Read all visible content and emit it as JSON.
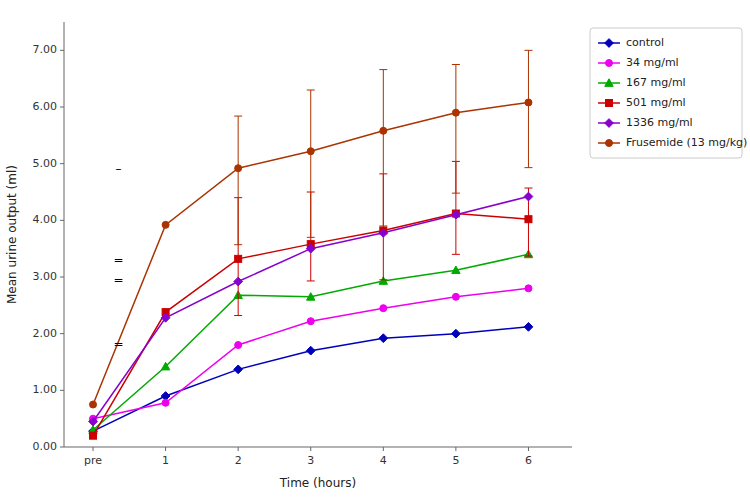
{
  "chart_data": {
    "type": "line",
    "xlabel": "Time (hours)",
    "ylabel": "Mean urine output (ml)",
    "categories": [
      "pre",
      "1",
      "2",
      "3",
      "4",
      "5",
      "6"
    ],
    "xlim": [
      -0.4,
      6.6
    ],
    "ylim": [
      0.0,
      7.5
    ],
    "yticks": [
      {
        "value": 0.0,
        "label": "0.00"
      },
      {
        "value": 1.0,
        "label": "1.00"
      },
      {
        "value": 2.0,
        "label": "2.00"
      },
      {
        "value": 3.0,
        "label": "3.00"
      },
      {
        "value": 4.0,
        "label": "4.00"
      },
      {
        "value": 5.0,
        "label": "5.00"
      },
      {
        "value": 6.0,
        "label": "6.00"
      },
      {
        "value": 7.0,
        "label": "7.00"
      }
    ],
    "grid": false,
    "legend": "right",
    "series": [
      {
        "name": "control",
        "color": "#0000bb",
        "marker": "diamond",
        "values": [
          0.28,
          0.9,
          1.37,
          1.7,
          1.92,
          2.0,
          2.12
        ],
        "yerr_low": [
          0.0,
          0.0,
          0.0,
          0.0,
          0.0,
          0.0,
          0.0
        ],
        "yerr_high": [
          0.0,
          0.0,
          0.0,
          0.0,
          0.0,
          0.0,
          0.0
        ]
      },
      {
        "name": "34 mg/ml",
        "color": "#ee00ee",
        "marker": "circle",
        "values": [
          0.5,
          0.78,
          1.8,
          2.22,
          2.45,
          2.65,
          2.8
        ],
        "yerr_low": [
          0.0,
          0.0,
          0.0,
          0.0,
          0.0,
          0.0,
          0.0
        ],
        "yerr_high": [
          0.0,
          0.0,
          0.0,
          0.0,
          0.0,
          0.0,
          0.0
        ]
      },
      {
        "name": "167 mg/ml",
        "color": "#00aa00",
        "marker": "triangle",
        "values": [
          0.3,
          1.42,
          2.68,
          2.65,
          2.93,
          3.12,
          3.4
        ],
        "yerr_low": [
          0.0,
          0.0,
          0.0,
          0.0,
          0.0,
          0.0,
          0.0
        ],
        "yerr_high": [
          0.0,
          0.0,
          0.0,
          0.0,
          0.0,
          0.0,
          0.0
        ]
      },
      {
        "name": "501 mg/ml",
        "color": "#cc0000",
        "marker": "square",
        "values": [
          0.2,
          2.38,
          3.32,
          3.58,
          3.82,
          4.12,
          4.02
        ],
        "yerr_low": [
          0.0,
          0.0,
          1.0,
          0.65,
          0.87,
          0.72,
          0.65
        ],
        "yerr_high": [
          0.0,
          0.0,
          1.08,
          0.92,
          1.0,
          0.92,
          0.55
        ]
      },
      {
        "name": "1336 mg/ml",
        "color": "#8800cc",
        "marker": "diamond",
        "values": [
          0.45,
          2.28,
          2.92,
          3.5,
          3.78,
          4.1,
          4.42
        ],
        "yerr_low": [
          0.0,
          0.0,
          0.0,
          0.0,
          0.0,
          0.0,
          0.0
        ],
        "yerr_high": [
          0.0,
          0.0,
          0.0,
          0.0,
          0.0,
          0.0,
          0.0
        ]
      },
      {
        "name": "Frusemide (13 mg/kg)",
        "color": "#aa3300",
        "marker": "circle",
        "values": [
          0.75,
          3.92,
          4.92,
          5.22,
          5.58,
          5.9,
          6.08
        ],
        "yerr_low": [
          0.0,
          0.0,
          1.35,
          1.52,
          1.68,
          1.42,
          1.15
        ],
        "yerr_high": [
          0.0,
          0.0,
          0.92,
          1.08,
          1.08,
          0.85,
          0.92
        ]
      }
    ],
    "annotations": [
      {
        "x": 0.35,
        "y": 4.9,
        "text": "–"
      },
      {
        "x": 0.35,
        "y": 3.3,
        "text": "="
      },
      {
        "x": 0.35,
        "y": 2.95,
        "text": "="
      },
      {
        "x": 0.35,
        "y": 1.82,
        "text": "="
      }
    ]
  }
}
